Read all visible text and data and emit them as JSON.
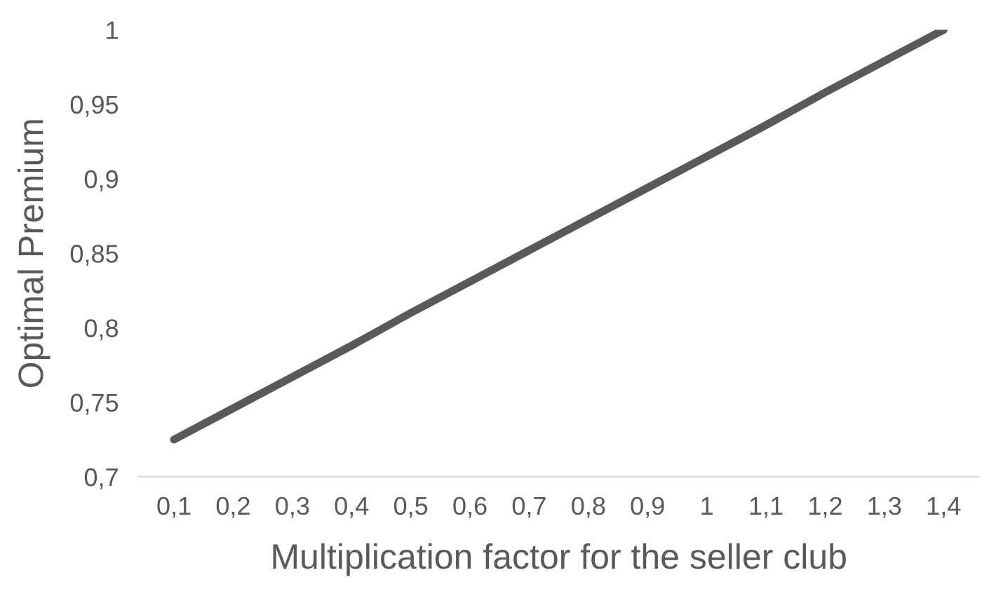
{
  "chart_data": {
    "type": "line",
    "xlabel": "Multiplication factor for the seller club",
    "ylabel": "Optimal Premium",
    "categories": [
      "0,1",
      "0,2",
      "0,3",
      "0,4",
      "0,5",
      "0,6",
      "0,7",
      "0,8",
      "0,9",
      "1",
      "1,1",
      "1,2",
      "1,3",
      "1,4"
    ],
    "series": [
      {
        "color": "#595959",
        "values": [
          0.725,
          0.746,
          0.767,
          0.788,
          0.81,
          0.831,
          0.852,
          0.873,
          0.894,
          0.915,
          0.936,
          0.958,
          0.979,
          1.0
        ]
      }
    ],
    "ylim": [
      0.7,
      1.0
    ],
    "yticks": [
      {
        "value": 0.7,
        "label": "0,7"
      },
      {
        "value": 0.75,
        "label": "0,75"
      },
      {
        "value": 0.8,
        "label": "0,8"
      },
      {
        "value": 0.85,
        "label": "0,85"
      },
      {
        "value": 0.9,
        "label": "0,9"
      },
      {
        "value": 0.95,
        "label": "0,95"
      },
      {
        "value": 1.0,
        "label": "1"
      }
    ],
    "grid": false,
    "legend": false,
    "marker": "none",
    "line_style": "solid"
  }
}
